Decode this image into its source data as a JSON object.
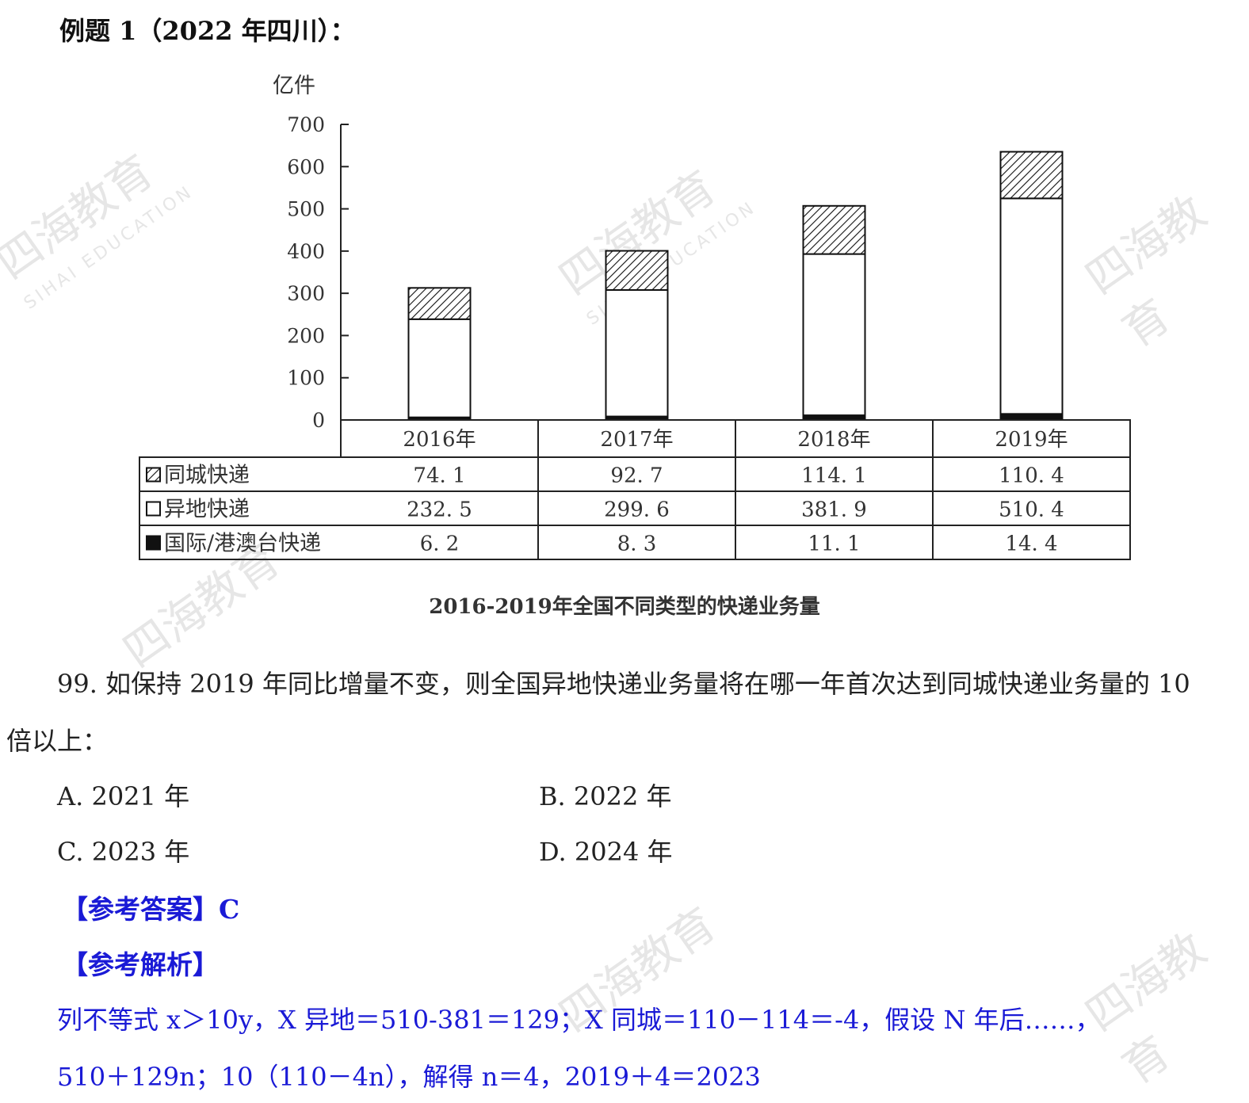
{
  "heading": "例题 1（2022 年四川）：",
  "chart_data": {
    "type": "bar",
    "stacked": true,
    "unit_label": "亿件",
    "yticks": [
      "700",
      "600",
      "500",
      "400",
      "300",
      "200",
      "100",
      "0"
    ],
    "ylim": [
      0,
      700
    ],
    "categories": [
      "2016年",
      "2017年",
      "2018年",
      "2019年"
    ],
    "series": [
      {
        "name": "国际/港澳台快递",
        "values": [
          6.2,
          8.3,
          11.1,
          14.4
        ],
        "fill": "solid",
        "color": "#111111"
      },
      {
        "name": "异地快递",
        "values": [
          232.5,
          299.6,
          381.9,
          510.4
        ],
        "fill": "white",
        "color": "#ffffff"
      },
      {
        "name": "同城快递",
        "values": [
          74.1,
          92.7,
          114.1,
          110.4
        ],
        "fill": "hatched",
        "color": "#222222"
      }
    ],
    "table_rows": [
      {
        "label": "同城快递",
        "cells": [
          "74. 1",
          "92. 7",
          "114. 1",
          "110. 4"
        ]
      },
      {
        "label": "异地快递",
        "cells": [
          "232. 5",
          "299. 6",
          "381. 9",
          "510. 4"
        ]
      },
      {
        "label": "国际/港澳台快递",
        "cells": [
          "6. 2",
          "8. 3",
          "11. 1",
          "14. 4"
        ]
      }
    ],
    "title": "2016-2019年全国不同类型的快递业务量"
  },
  "question": {
    "line1": "99. 如保持 2019 年同比增量不变，则全国异地快递业务量将在哪一年首次达到同城快递业务量的 10",
    "line2": "倍以上：",
    "options": {
      "A": "A. 2021 年",
      "B": "B. 2022 年",
      "C": "C. 2023 年",
      "D": "D. 2024 年"
    }
  },
  "answer_label": "【参考答案】C",
  "analysis_label": "【参考解析】",
  "solution": {
    "line1": "列不等式 x＞10y，X 异地＝510-381＝129；X 同城＝110－114＝-4，假设 N 年后……，",
    "line2": "510＋129n；10（110－4n），解得 n＝4，2019＋4＝2023"
  },
  "watermark": {
    "text": "四海教育",
    "subtext": "SIHAI EDUCATION"
  }
}
